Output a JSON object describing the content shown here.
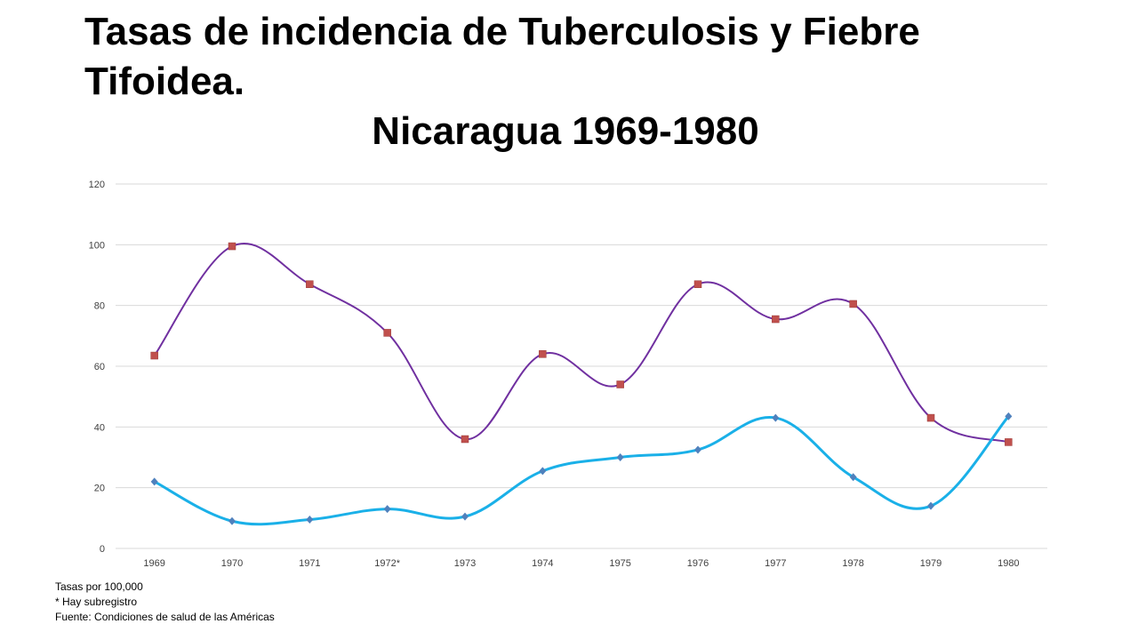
{
  "page": {
    "title": "Tasas de incidencia de Tuberculosis y Fiebre Tifoidea.",
    "subtitle": "Nicaragua 1969-1980",
    "notes": [
      "Tasas por 100,000",
      "* Hay subregistro",
      "Fuente: Condiciones de salud de las Américas"
    ]
  },
  "chart_data": {
    "type": "line",
    "title": "Tasas de incidencia de Tuberculosis y Fiebre Tifoidea. Nicaragua 1969-1980",
    "xlabel": "",
    "ylabel": "",
    "ylim": [
      0,
      120
    ],
    "yticks": [
      "0",
      "20",
      "40",
      "60",
      "80",
      "100",
      "120"
    ],
    "categories": [
      "1969",
      "1970",
      "1971",
      "1972*",
      "1973",
      "1974",
      "1975",
      "1976",
      "1977",
      "1978",
      "1979",
      "1980"
    ],
    "grid": true,
    "legend": "none",
    "smooth": true,
    "series": [
      {
        "color": "#7030a0",
        "marker": "square",
        "marker_color": "#c0504d",
        "values": [
          63.5,
          99.5,
          87,
          71,
          36,
          64,
          54,
          87,
          75.5,
          80.5,
          43,
          35
        ]
      },
      {
        "color": "#1ab0e8",
        "marker": "diamond",
        "marker_color": "#4f81bd",
        "values": [
          22,
          9,
          9.5,
          13,
          10.5,
          25.5,
          30,
          32.5,
          43,
          23.5,
          14,
          43.5
        ]
      }
    ]
  }
}
